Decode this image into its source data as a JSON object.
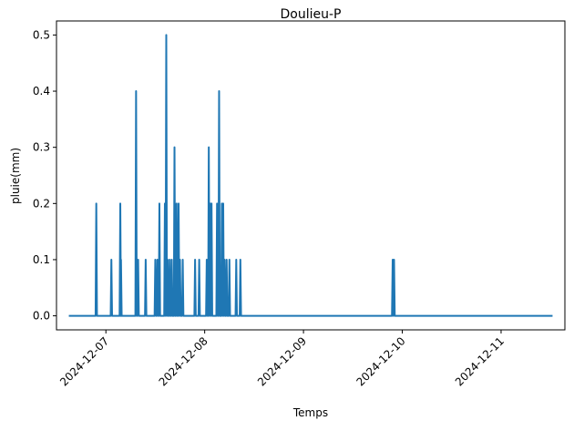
{
  "chart_data": {
    "type": "line",
    "title": "Doulieu-P",
    "xlabel": "Temps",
    "ylabel": "pluie(mm)",
    "color": "#1f77b4",
    "xlim": [
      "2024-12-06 12:00",
      "2024-12-11 15:30"
    ],
    "ylim": [
      -0.025,
      0.525
    ],
    "grid": false,
    "xticks": [
      "2024-12-07",
      "2024-12-08",
      "2024-12-09",
      "2024-12-10",
      "2024-12-11"
    ],
    "yticks": [
      "0.0",
      "0.1",
      "0.2",
      "0.3",
      "0.4",
      "0.5"
    ],
    "series": [
      {
        "baseline": 0.0,
        "start": "2024-12-06 15:00",
        "end": "2024-12-11 12:30",
        "points": [
          [
            "2024-12-06 21:40",
            0.2
          ],
          [
            "2024-12-07 01:20",
            0.1
          ],
          [
            "2024-12-07 03:30",
            0.2
          ],
          [
            "2024-12-07 03:40",
            0.1
          ],
          [
            "2024-12-07 07:20",
            0.4
          ],
          [
            "2024-12-07 07:50",
            0.1
          ],
          [
            "2024-12-07 09:40",
            0.1
          ],
          [
            "2024-12-07 12:00",
            0.1
          ],
          [
            "2024-12-07 12:30",
            0.1
          ],
          [
            "2024-12-07 13:00",
            0.2
          ],
          [
            "2024-12-07 14:20",
            0.2
          ],
          [
            "2024-12-07 14:40",
            0.5
          ],
          [
            "2024-12-07 15:00",
            0.1
          ],
          [
            "2024-12-07 15:30",
            0.1
          ],
          [
            "2024-12-07 16:00",
            0.1
          ],
          [
            "2024-12-07 16:40",
            0.3
          ],
          [
            "2024-12-07 17:10",
            0.2
          ],
          [
            "2024-12-07 17:40",
            0.2
          ],
          [
            "2024-12-07 18:00",
            0.1
          ],
          [
            "2024-12-07 18:40",
            0.1
          ],
          [
            "2024-12-07 21:40",
            0.1
          ],
          [
            "2024-12-07 22:40",
            0.1
          ],
          [
            "2024-12-08 00:30",
            0.1
          ],
          [
            "2024-12-08 01:00",
            0.3
          ],
          [
            "2024-12-08 01:20",
            0.2
          ],
          [
            "2024-12-08 01:40",
            0.2
          ],
          [
            "2024-12-08 03:00",
            0.2
          ],
          [
            "2024-12-08 03:30",
            0.4
          ],
          [
            "2024-12-08 04:10",
            0.2
          ],
          [
            "2024-12-08 04:30",
            0.2
          ],
          [
            "2024-12-08 04:50",
            0.1
          ],
          [
            "2024-12-08 05:20",
            0.1
          ],
          [
            "2024-12-08 06:00",
            0.1
          ],
          [
            "2024-12-08 07:40",
            0.1
          ],
          [
            "2024-12-08 08:40",
            0.1
          ],
          [
            "2024-12-09 21:40",
            0.1
          ],
          [
            "2024-12-09 22:00",
            0.1
          ]
        ]
      }
    ]
  }
}
